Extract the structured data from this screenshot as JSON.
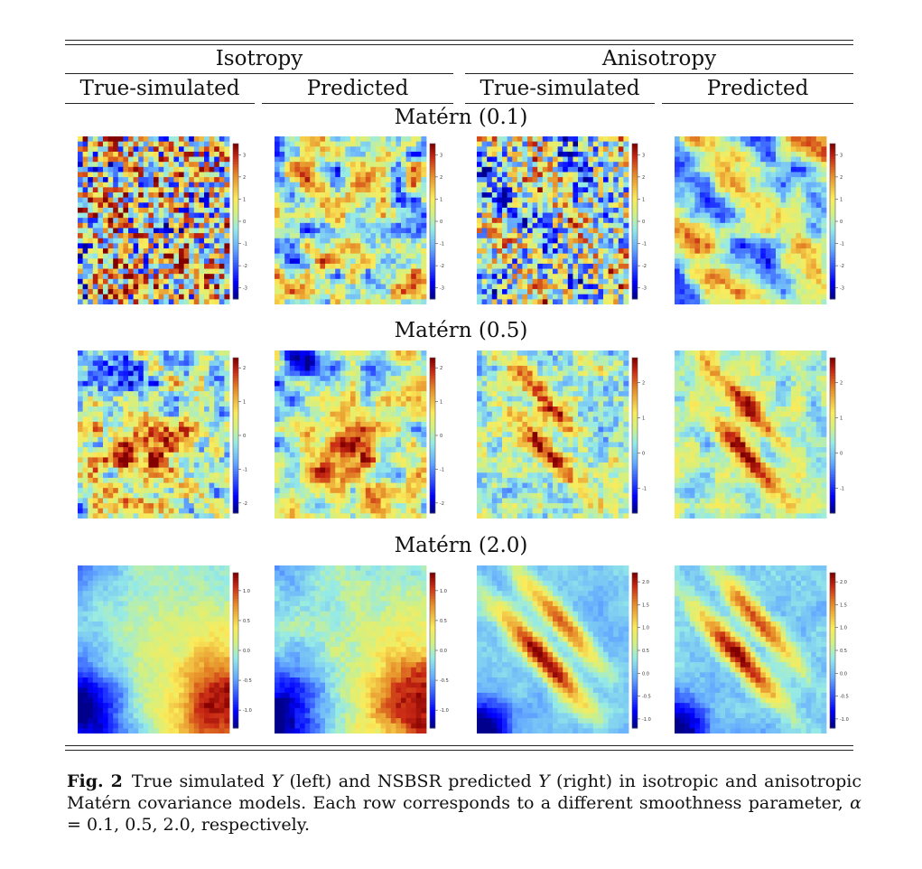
{
  "table": {
    "group_headers": [
      "Isotropy",
      "Anisotropy"
    ],
    "column_headers": [
      "True-simulated",
      "Predicted",
      "True-simulated",
      "Predicted"
    ],
    "rows": [
      {
        "label": "Matérn (0.1)",
        "panels": [
          {
            "pattern": "iso-rough",
            "seed": 11,
            "ticks": [
              "3",
              "2",
              "1",
              "0",
              "-1",
              "-2",
              "-3"
            ],
            "vmin": -3.5,
            "vmax": 3.5
          },
          {
            "pattern": "iso-rough-pred",
            "seed": 12,
            "ticks": [
              "3",
              "2",
              "1",
              "0",
              "-1",
              "-2",
              "-3"
            ],
            "vmin": -3.5,
            "vmax": 3.5
          },
          {
            "pattern": "aniso-rough",
            "seed": 13,
            "ticks": [
              "3",
              "2",
              "1",
              "0",
              "-1",
              "-2",
              "-3"
            ],
            "vmin": -3.5,
            "vmax": 3.5
          },
          {
            "pattern": "aniso-rough-pred",
            "seed": 14,
            "ticks": [
              "3",
              "2",
              "1",
              "0",
              "-1",
              "-2",
              "-3"
            ],
            "vmin": -3.5,
            "vmax": 3.5
          }
        ]
      },
      {
        "label": "Matérn (0.5)",
        "panels": [
          {
            "pattern": "iso-mid",
            "seed": 21,
            "ticks": [
              "2",
              "1",
              "0",
              "-1",
              "-2"
            ],
            "vmin": -2.3,
            "vmax": 2.3
          },
          {
            "pattern": "iso-mid-pred",
            "seed": 22,
            "ticks": [
              "2",
              "1",
              "0",
              "-1",
              "-2"
            ],
            "vmin": -2.3,
            "vmax": 2.3
          },
          {
            "pattern": "aniso-mid",
            "seed": 23,
            "ticks": [
              "2",
              "1",
              "0",
              "-1"
            ],
            "vmin": -1.7,
            "vmax": 2.7
          },
          {
            "pattern": "aniso-mid-pred",
            "seed": 24,
            "ticks": [
              "2",
              "1",
              "0",
              "-1"
            ],
            "vmin": -1.7,
            "vmax": 2.7
          }
        ]
      },
      {
        "label": "Matérn (2.0)",
        "panels": [
          {
            "pattern": "iso-smooth",
            "seed": 31,
            "ticks": [
              "1.0",
              "0.5",
              "0.0",
              "-0.5",
              "-1.0"
            ],
            "vmin": -1.3,
            "vmax": 1.3
          },
          {
            "pattern": "iso-smooth-pred",
            "seed": 32,
            "ticks": [
              "1.0",
              "0.5",
              "0.0",
              "-0.5",
              "-1.0"
            ],
            "vmin": -1.3,
            "vmax": 1.3
          },
          {
            "pattern": "aniso-smooth",
            "seed": 33,
            "ticks": [
              "2.0",
              "1.5",
              "1.0",
              "0.5",
              "0.0",
              "-0.5",
              "-1.0"
            ],
            "vmin": -1.2,
            "vmax": 2.2
          },
          {
            "pattern": "aniso-smooth-pred",
            "seed": 34,
            "ticks": [
              "2.0",
              "1.5",
              "1.0",
              "0.5",
              "0.0",
              "-0.5",
              "-1.0"
            ],
            "vmin": -1.2,
            "vmax": 2.2
          }
        ]
      }
    ]
  },
  "caption": {
    "label": "Fig. 2",
    "text_parts": [
      "True simulated ",
      "Y",
      " (left) and NSBSR predicted ",
      "Y",
      " (right) in isotropic and anisotropic Matérn covariance models. Each row corresponds to a different smoothness parameter, ",
      "α",
      " = 0.1, 0.5, 2.0, respectively."
    ]
  }
}
